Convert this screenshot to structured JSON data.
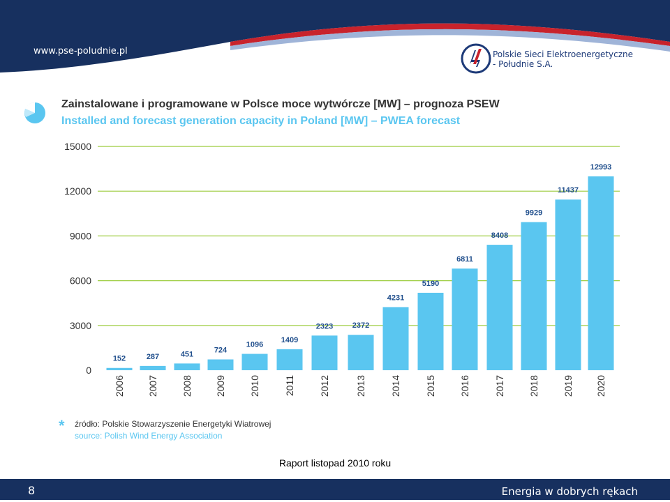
{
  "header": {
    "url": "www.pse-poludnie.pl",
    "company_line1": "Polskie Sieci Elektroenergetyczne",
    "company_line2": "- Południe S.A.",
    "colors": {
      "navy": "#17305f",
      "red": "#c8232c",
      "accent": "#5ac6f0"
    }
  },
  "chart_title_pl": "Zainstalowane i programowane w Polsce moce wytwórcze [MW] – prognoza PSEW",
  "chart_title_en": "Installed and forecast generation capacity in Poland [MW] – PWEA forecast",
  "chart_data": {
    "type": "bar",
    "categories": [
      "2006",
      "2007",
      "2008",
      "2009",
      "2010",
      "2011",
      "2012",
      "2013",
      "2014",
      "2015",
      "2016",
      "2017",
      "2018",
      "2019",
      "2020"
    ],
    "values": [
      152,
      287,
      451,
      724,
      1096,
      1409,
      2323,
      2372,
      4231,
      5190,
      6811,
      8408,
      9929,
      11437,
      12993
    ],
    "ylim": [
      0,
      15000
    ],
    "yticks": [
      0,
      3000,
      6000,
      9000,
      12000,
      15000
    ],
    "grid": true,
    "bar_color": "#5ac6f0",
    "grid_color": "#9ccc3c"
  },
  "source": {
    "pl": "źródło: Polskie Stowarzyszenie Energetyki Wiatrowej",
    "en": "source: Polish Wind Energy Association",
    "star": "*"
  },
  "report_label": "Raport listopad 2010 roku",
  "footer": {
    "page_number": "8",
    "tagline": "Energia w dobrych rękach"
  }
}
